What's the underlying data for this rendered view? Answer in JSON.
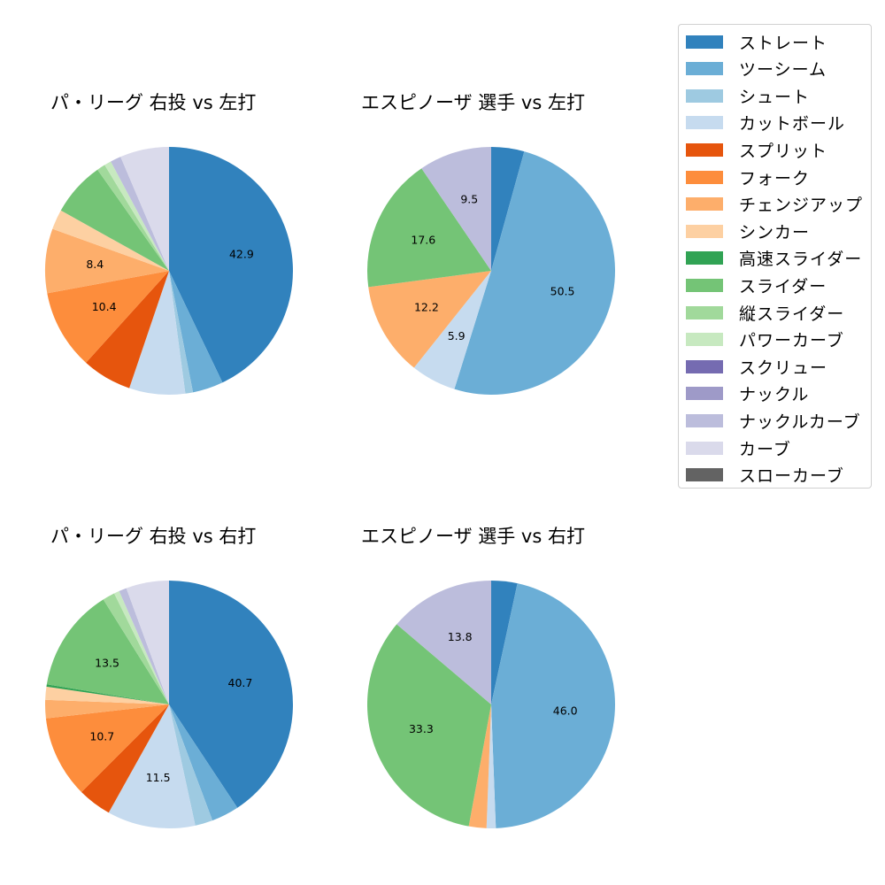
{
  "pitch_types": [
    {
      "name": "ストレート",
      "color": "#3182bd"
    },
    {
      "name": "ツーシーム",
      "color": "#6baed6"
    },
    {
      "name": "シュート",
      "color": "#9ecae1"
    },
    {
      "name": "カットボール",
      "color": "#c6dbef"
    },
    {
      "name": "スプリット",
      "color": "#e6550d"
    },
    {
      "name": "フォーク",
      "color": "#fd8d3c"
    },
    {
      "name": "チェンジアップ",
      "color": "#fdae6b"
    },
    {
      "name": "シンカー",
      "color": "#fdd0a2"
    },
    {
      "name": "高速スライダー",
      "color": "#31a354"
    },
    {
      "name": "スライダー",
      "color": "#74c476"
    },
    {
      "name": "縦スライダー",
      "color": "#a1d99b"
    },
    {
      "name": "パワーカーブ",
      "color": "#c7e9c0"
    },
    {
      "name": "スクリュー",
      "color": "#756bb1"
    },
    {
      "name": "ナックル",
      "color": "#9e9ac8"
    },
    {
      "name": "ナックルカーブ",
      "color": "#bcbddc"
    },
    {
      "name": "カーブ",
      "color": "#dadaeb"
    },
    {
      "name": "スローカーブ",
      "color": "#636363"
    }
  ],
  "chart_data": [
    {
      "type": "pie",
      "title": "パ・リーグ 右投 vs 左打",
      "categories": [
        "ストレート",
        "ツーシーム",
        "シュート",
        "カットボール",
        "スプリット",
        "フォーク",
        "チェンジアップ",
        "シンカー",
        "スライダー",
        "縦スライダー",
        "パワーカーブ",
        "ナックルカーブ",
        "カーブ"
      ],
      "values": [
        42.9,
        4.0,
        1.0,
        7.3,
        6.5,
        10.4,
        8.4,
        2.6,
        7.1,
        1.1,
        0.9,
        1.4,
        6.4
      ],
      "labels_shown": [
        "42.9",
        "10.4",
        "8.4"
      ],
      "start_angle": 90,
      "direction": "clockwise"
    },
    {
      "type": "pie",
      "title": "エスピノーザ 選手 vs 左打",
      "categories": [
        "ストレート",
        "ツーシーム",
        "カットボール",
        "チェンジアップ",
        "スライダー",
        "ナックルカーブ"
      ],
      "values": [
        4.3,
        50.5,
        5.9,
        12.2,
        17.6,
        9.5
      ],
      "labels_shown": [
        "50.5",
        "5.9",
        "12.2",
        "17.6",
        "9.5"
      ],
      "start_angle": 90,
      "direction": "clockwise"
    },
    {
      "type": "pie",
      "title": "パ・リーグ 右投 vs 右打",
      "categories": [
        "ストレート",
        "ツーシーム",
        "シュート",
        "カットボール",
        "スプリット",
        "フォーク",
        "チェンジアップ",
        "シンカー",
        "高速スライダー",
        "スライダー",
        "縦スライダー",
        "パワーカーブ",
        "ナックルカーブ",
        "カーブ"
      ],
      "values": [
        40.7,
        3.6,
        2.3,
        11.5,
        4.4,
        10.7,
        2.4,
        1.7,
        0.3,
        13.5,
        1.6,
        0.7,
        1.0,
        5.6
      ],
      "labels_shown": [
        "40.7",
        "11.5",
        "10.7",
        "13.5"
      ],
      "start_angle": 90,
      "direction": "clockwise"
    },
    {
      "type": "pie",
      "title": "エスピノーザ 選手 vs 右打",
      "categories": [
        "ストレート",
        "ツーシーム",
        "カットボール",
        "チェンジアップ",
        "スライダー",
        "ナックルカーブ"
      ],
      "values": [
        3.4,
        46.0,
        1.2,
        2.3,
        33.3,
        13.8
      ],
      "labels_shown": [
        "46.0",
        "33.3",
        "13.8"
      ],
      "start_angle": 90,
      "direction": "clockwise"
    }
  ],
  "legend": {
    "position": "upper right",
    "items": [
      "ストレート",
      "ツーシーム",
      "シュート",
      "カットボール",
      "スプリット",
      "フォーク",
      "チェンジアップ",
      "シンカー",
      "高速スライダー",
      "スライダー",
      "縦スライダー",
      "パワーカーブ",
      "スクリュー",
      "ナックル",
      "ナックルカーブ",
      "カーブ",
      "スローカーブ"
    ]
  }
}
